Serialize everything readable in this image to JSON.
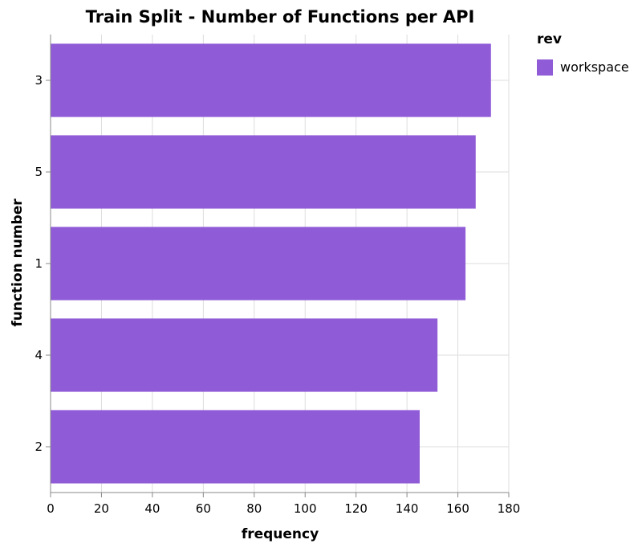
{
  "chart_data": {
    "type": "bar",
    "orientation": "horizontal",
    "title": "Train Split - Number of Functions per API",
    "xlabel": "frequency",
    "ylabel": "function number",
    "categories": [
      "3",
      "5",
      "1",
      "4",
      "2"
    ],
    "series": [
      {
        "name": "workspace",
        "color": "#8f5bd7",
        "values": [
          173,
          167,
          163,
          152,
          145
        ]
      }
    ],
    "xlim": [
      0,
      180
    ],
    "xticks": [
      0,
      20,
      40,
      60,
      80,
      100,
      120,
      140,
      160,
      180
    ],
    "grid": true,
    "legend": {
      "title": "rev",
      "position": "top-right"
    }
  }
}
